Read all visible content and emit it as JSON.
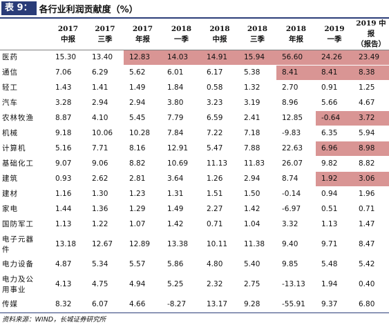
{
  "title": {
    "label": "表 9：",
    "text": "各行业利润贡献度（%）"
  },
  "columns": [
    {
      "year": "2017",
      "period": "中报"
    },
    {
      "year": "2017",
      "period": "三季"
    },
    {
      "year": "2017",
      "period": "年报"
    },
    {
      "year": "2018",
      "period": "一季"
    },
    {
      "year": "2018",
      "period": "中报"
    },
    {
      "year": "2018",
      "period": "三季"
    },
    {
      "year": "2018",
      "period": "年报"
    },
    {
      "year": "2019",
      "period": "一季"
    },
    {
      "year": "2019 中报",
      "period": "（报告）"
    }
  ],
  "rows": [
    {
      "name": "医药",
      "values": [
        "15.30",
        "13.40",
        "12.83",
        "14.03",
        "14.91",
        "15.94",
        "56.60",
        "24.26",
        "23.49"
      ],
      "highlight": [
        2,
        3,
        4,
        5,
        6,
        7,
        8
      ]
    },
    {
      "name": "通信",
      "values": [
        "7.06",
        "6.29",
        "5.62",
        "6.01",
        "6.17",
        "5.38",
        "8.41",
        "8.41",
        "8.38"
      ],
      "highlight": [
        6,
        7,
        8
      ]
    },
    {
      "name": "轻工",
      "values": [
        "1.43",
        "1.41",
        "1.49",
        "1.84",
        "0.58",
        "1.32",
        "2.70",
        "0.91",
        "1.25"
      ],
      "highlight": []
    },
    {
      "name": "汽车",
      "values": [
        "3.28",
        "2.94",
        "2.94",
        "3.80",
        "3.23",
        "3.19",
        "8.96",
        "5.66",
        "4.67"
      ],
      "highlight": []
    },
    {
      "name": "农林牧渔",
      "values": [
        "8.87",
        "4.10",
        "5.45",
        "7.79",
        "6.59",
        "2.41",
        "12.85",
        "-0.64",
        "3.72"
      ],
      "highlight": [
        7,
        8
      ]
    },
    {
      "name": "机械",
      "values": [
        "9.18",
        "10.06",
        "10.28",
        "7.84",
        "7.22",
        "7.18",
        "-9.83",
        "6.35",
        "5.94"
      ],
      "highlight": []
    },
    {
      "name": "计算机",
      "values": [
        "5.16",
        "7.71",
        "8.16",
        "12.91",
        "5.47",
        "7.88",
        "22.63",
        "6.96",
        "8.98"
      ],
      "highlight": [
        7,
        8
      ]
    },
    {
      "name": "基础化工",
      "values": [
        "9.07",
        "9.06",
        "8.82",
        "10.69",
        "11.13",
        "11.83",
        "26.07",
        "9.82",
        "8.82"
      ],
      "highlight": []
    },
    {
      "name": "建筑",
      "values": [
        "0.93",
        "2.62",
        "2.81",
        "3.64",
        "1.26",
        "2.94",
        "8.74",
        "1.92",
        "3.06"
      ],
      "highlight": [
        7,
        8
      ]
    },
    {
      "name": "建材",
      "values": [
        "1.16",
        "1.30",
        "1.23",
        "1.31",
        "1.51",
        "1.50",
        "-0.14",
        "0.94",
        "1.96"
      ],
      "highlight": []
    },
    {
      "name": "家电",
      "values": [
        "1.44",
        "1.36",
        "1.29",
        "1.49",
        "2.27",
        "1.42",
        "-6.97",
        "0.51",
        "0.71"
      ],
      "highlight": []
    },
    {
      "name": "国防军工",
      "values": [
        "1.13",
        "1.22",
        "1.07",
        "1.42",
        "0.71",
        "1.04",
        "3.32",
        "1.13",
        "1.47"
      ],
      "highlight": []
    },
    {
      "name": "电子元器件",
      "name_lines": [
        "电子元器",
        "件"
      ],
      "values": [
        "13.18",
        "12.67",
        "12.89",
        "13.38",
        "10.11",
        "11.38",
        "9.40",
        "9.71",
        "8.47"
      ],
      "highlight": [],
      "tall": true
    },
    {
      "name": "电力设备",
      "values": [
        "4.87",
        "5.34",
        "5.57",
        "5.86",
        "4.80",
        "5.40",
        "9.85",
        "5.48",
        "5.42"
      ],
      "highlight": []
    },
    {
      "name": "电力及公用事业",
      "name_lines": [
        "电力及公",
        "用事业"
      ],
      "values": [
        "4.13",
        "4.75",
        "4.94",
        "5.25",
        "2.32",
        "2.75",
        "-13.13",
        "1.94",
        "0.40"
      ],
      "highlight": [],
      "tall": true
    },
    {
      "name": "传媒",
      "values": [
        "8.32",
        "6.07",
        "4.66",
        "-8.27",
        "13.17",
        "9.28",
        "-55.91",
        "9.37",
        "6.80"
      ],
      "highlight": []
    }
  ],
  "source": "资料来源：WIND，长城证券研究所",
  "colors": {
    "header_accent": "#2a3c78",
    "highlight": "#d99594"
  }
}
